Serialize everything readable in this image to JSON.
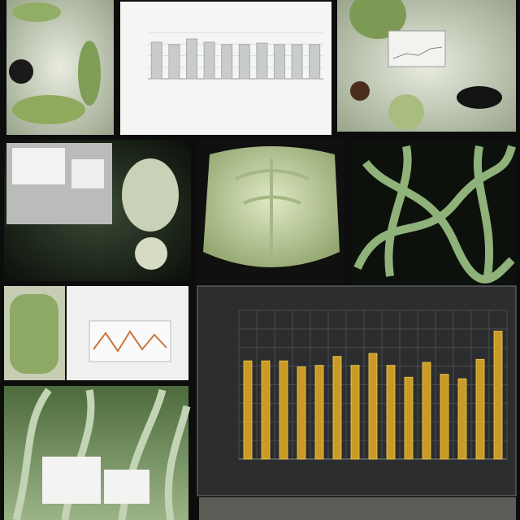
{
  "panels": {
    "top_chart": {
      "type": "bar",
      "values": [
        79,
        74,
        86,
        79,
        74,
        74,
        77,
        74,
        74,
        74
      ],
      "ylim": [
        0,
        100
      ],
      "color": "#c9cccd"
    },
    "main_chart": {
      "type": "bar",
      "values": [
        66,
        66,
        66,
        62,
        63,
        69,
        63,
        71,
        63,
        55,
        65,
        57,
        54,
        67,
        86
      ],
      "ylim": [
        0,
        100
      ],
      "color": "#c99a26"
    }
  }
}
